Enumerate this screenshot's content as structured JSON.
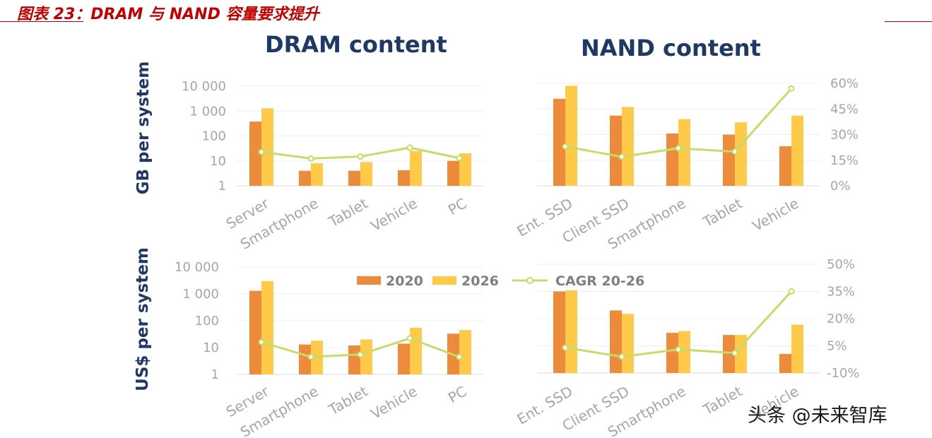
{
  "figure": {
    "title": "图表 23：DRAM 与 NAND 容量要求提升",
    "panel_titles": [
      "DRAM content",
      "NAND content"
    ],
    "row_titles": [
      "GB per system",
      "US$ per system"
    ],
    "watermark": "头条 @未来智库"
  },
  "legend": [
    "2020",
    "2026",
    "CAGR 20-26"
  ],
  "colors": {
    "title_red": "#c00000",
    "navy": "#203864",
    "bar_2020": "#ee8a3c",
    "bar_2026": "#ffc94a",
    "cagr_line": "#c4dc6a",
    "axis_text": "#a6a6a6"
  },
  "chart_data": [
    {
      "id": "dram_gb",
      "type": "bar",
      "title": "DRAM content",
      "ylabel": "GB per system",
      "yscale": "log",
      "ylim": [
        1,
        10000
      ],
      "yticks": [
        "1",
        "10",
        "100",
        "1 000",
        "10 000"
      ],
      "categories": [
        "Server",
        "Smartphone",
        "Tablet",
        "Vehicle",
        "PC"
      ],
      "series": [
        {
          "name": "2020",
          "values": [
            380,
            4,
            4,
            4.2,
            10
          ]
        },
        {
          "name": "2026",
          "values": [
            1300,
            8,
            9,
            25,
            20
          ]
        },
        {
          "name": "CAGR 20-26",
          "type": "line",
          "values": [
            23,
            12.5,
            15,
            34,
            13
          ]
        }
      ]
    },
    {
      "id": "nand_gb",
      "type": "bar",
      "title": "NAND content",
      "yscale": "log",
      "ylim": [
        1,
        10000
      ],
      "y2ticks": [
        "0%",
        "15%",
        "30%",
        "45%",
        "60%"
      ],
      "y2lim": [
        0,
        60
      ],
      "categories": [
        "Ent. SSD",
        "Client SSD",
        "Smartphone",
        "Tablet",
        "Vehicle"
      ],
      "series": [
        {
          "name": "2020",
          "values": [
            2500,
            550,
            110,
            100,
            35
          ]
        },
        {
          "name": "2026",
          "values": [
            8000,
            1200,
            400,
            300,
            550
          ]
        },
        {
          "name": "CAGR 20-26",
          "type": "line",
          "axis": "secondary",
          "values": [
            23,
            17,
            22,
            20,
            57
          ]
        }
      ]
    },
    {
      "id": "dram_usd",
      "type": "bar",
      "ylabel": "US$ per system",
      "yscale": "log",
      "ylim": [
        1,
        10000
      ],
      "yticks": [
        "1",
        "10",
        "100",
        "1 000",
        "10 000"
      ],
      "categories": [
        "Server",
        "Smartphone",
        "Tablet",
        "Vehicle",
        "PC"
      ],
      "series": [
        {
          "name": "2020",
          "values": [
            1300,
            13,
            12,
            14,
            33
          ]
        },
        {
          "name": "2026",
          "values": [
            3000,
            18,
            20,
            55,
            45
          ]
        },
        {
          "name": "CAGR 20-26",
          "type": "line",
          "values": [
            16,
            4.5,
            5.5,
            22,
            4.5
          ]
        }
      ]
    },
    {
      "id": "nand_usd",
      "type": "bar",
      "yscale": "log",
      "ylim": [
        1,
        10000
      ],
      "y2ticks": [
        "-10%",
        "5%",
        "20%",
        "35%",
        "50%"
      ],
      "y2lim": [
        -10,
        50
      ],
      "categories": [
        "Ent. SSD",
        "Client SSD",
        "Smartphone",
        "Tablet",
        "Vehicle"
      ],
      "series": [
        {
          "name": "2020",
          "values": [
            1000,
            200,
            30,
            25,
            5
          ]
        },
        {
          "name": "2026",
          "values": [
            1100,
            150,
            35,
            25,
            60
          ]
        },
        {
          "name": "CAGR 20-26",
          "type": "line",
          "axis": "secondary",
          "values": [
            4,
            -1,
            3,
            1,
            35
          ]
        }
      ]
    }
  ]
}
